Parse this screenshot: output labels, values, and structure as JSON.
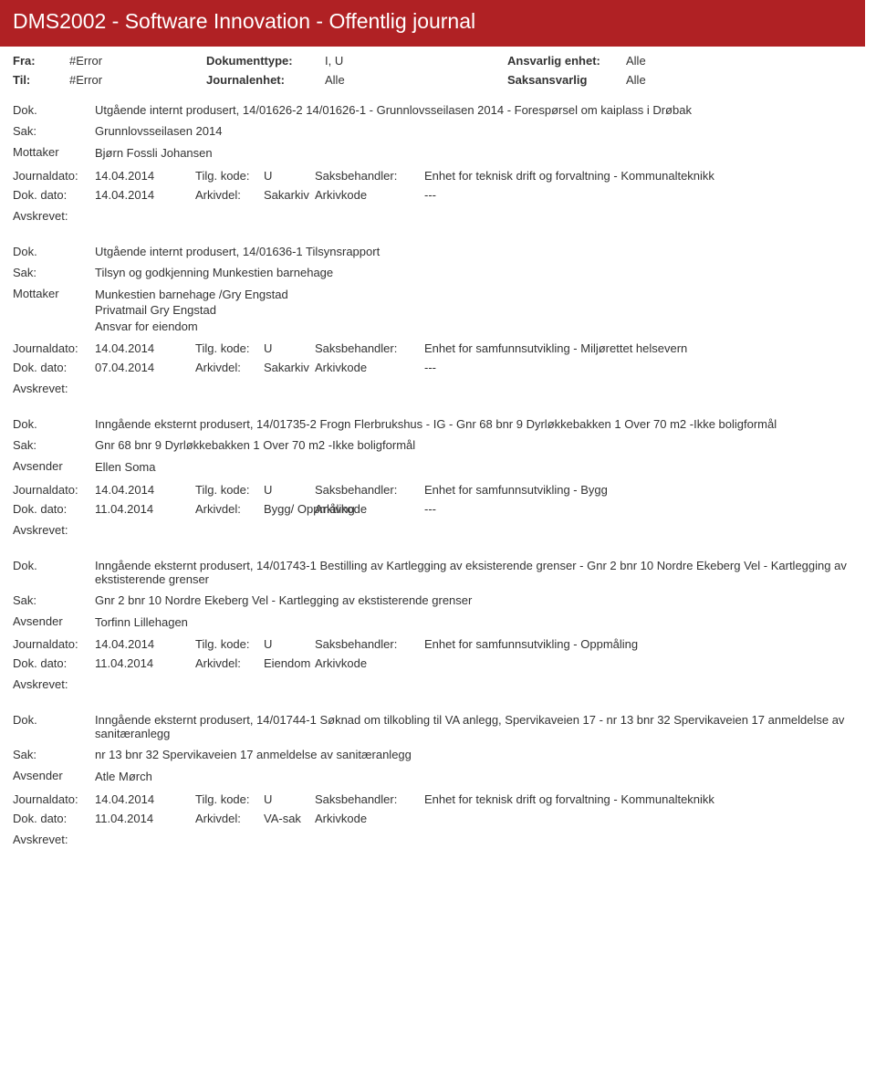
{
  "header": {
    "title": "DMS2002 - Software Innovation - Offentlig journal"
  },
  "filter": {
    "fra_label": "Fra:",
    "fra_value": "#Error",
    "til_label": "Til:",
    "til_value": "#Error",
    "doktype_label": "Dokumenttype:",
    "doktype_value": "I, U",
    "journalenhet_label": "Journalenhet:",
    "journalenhet_value": "Alle",
    "ansvarlig_label": "Ansvarlig enhet:",
    "ansvarlig_value": "Alle",
    "saksansvarlig_label": "Saksansvarlig",
    "saksansvarlig_value": "Alle"
  },
  "labels": {
    "dok": "Dok.",
    "sak": "Sak:",
    "mottaker": "Mottaker",
    "avsender": "Avsender",
    "journaldato": "Journaldato:",
    "tilgkode": "Tilg. kode:",
    "saksbehandler": "Saksbehandler:",
    "dokdato": "Dok. dato:",
    "arkivdel": "Arkivdel:",
    "arkivkode": "Arkivkode",
    "avskrevet": "Avskrevet:"
  },
  "entries": [
    {
      "dok": "Utgående internt produsert, 14/01626-2 14/01626-1 - Grunnlovsseilasen 2014 - Forespørsel om kaiplass i Drøbak",
      "sak": "Grunnlovsseilasen 2014",
      "party_label": "Mottaker",
      "party": [
        "Bjørn Fossli Johansen"
      ],
      "journaldato": "14.04.2014",
      "tilgkode": "U",
      "saksbehandler": "Enhet for teknisk drift og forvaltning - Kommunalteknikk",
      "dokdato": "14.04.2014",
      "arkivdel": "Sakarkiv",
      "arkivkode": "---"
    },
    {
      "dok": "Utgående internt produsert, 14/01636-1 Tilsynsrapport",
      "sak": "Tilsyn og godkjenning Munkestien barnehage",
      "party_label": "Mottaker",
      "party": [
        "Munkestien barnehage /Gry Engstad",
        "Privatmail Gry Engstad",
        "Ansvar for eiendom"
      ],
      "journaldato": "14.04.2014",
      "tilgkode": "U",
      "saksbehandler": "Enhet for samfunnsutvikling - Miljørettet helsevern",
      "dokdato": "07.04.2014",
      "arkivdel": "Sakarkiv",
      "arkivkode": "---"
    },
    {
      "dok": "Inngående eksternt produsert, 14/01735-2 Frogn Flerbrukshus - IG  -  Gnr 68 bnr 9 Dyrløkkebakken 1 Over 70 m2 -Ikke boligformål",
      "sak": "Gnr 68 bnr 9 Dyrløkkebakken 1 Over 70 m2 -Ikke boligformål",
      "party_label": "Avsender",
      "party": [
        "Ellen Soma"
      ],
      "journaldato": "14.04.2014",
      "tilgkode": "U",
      "saksbehandler": "Enhet for samfunnsutvikling - Bygg",
      "dokdato": "11.04.2014",
      "arkivdel": "Bygg/ Oppmåling",
      "arkivkode": "---"
    },
    {
      "dok": "Inngående eksternt produsert, 14/01743-1 Bestilling av Kartlegging av eksisterende grenser -  Gnr 2  bnr 10 Nordre Ekeberg Vel - Kartlegging av ekstisterende grenser",
      "sak": "Gnr 2  bnr 10 Nordre Ekeberg Vel - Kartlegging av ekstisterende grenser",
      "party_label": "Avsender",
      "party": [
        "Torfinn Lillehagen"
      ],
      "journaldato": "14.04.2014",
      "tilgkode": "U",
      "saksbehandler": "Enhet for samfunnsutvikling - Oppmåling",
      "dokdato": "11.04.2014",
      "arkivdel": "Eiendom",
      "arkivkode": ""
    },
    {
      "dok": "Inngående eksternt produsert, 14/01744-1 Søknad om tilkobling til VA anlegg, Spervikaveien 17 -  nr 13 bnr 32 Spervikaveien 17 anmeldelse av sanitæranlegg",
      "sak": "nr 13 bnr 32 Spervikaveien 17 anmeldelse av sanitæranlegg",
      "party_label": "Avsender",
      "party": [
        "Atle Mørch"
      ],
      "journaldato": "14.04.2014",
      "tilgkode": "U",
      "saksbehandler": "Enhet for teknisk drift og forvaltning - Kommunalteknikk",
      "dokdato": "11.04.2014",
      "arkivdel": "VA-sak",
      "arkivkode": ""
    }
  ]
}
